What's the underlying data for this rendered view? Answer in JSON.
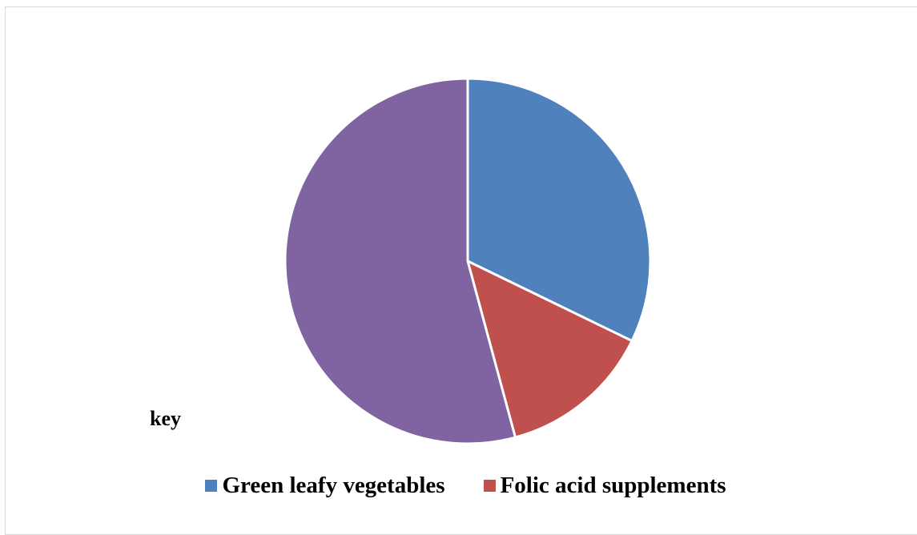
{
  "chart_data": {
    "type": "pie",
    "title": "",
    "start_angle_deg": 0,
    "direction": "clockwise",
    "slices": [
      {
        "label": "Green leafy vegetables",
        "value": 32.2,
        "color": "#4f81bd"
      },
      {
        "label": "Folic acid supplements",
        "value": 13.6,
        "color": "#c0504d"
      },
      {
        "label": "",
        "value": 54.2,
        "color": "#8064a2"
      }
    ],
    "key_label": "key",
    "legend_placement": "bottom",
    "legend": [
      {
        "label": "Green leafy vegetables",
        "color": "#4f81bd"
      },
      {
        "label": "Folic acid supplements",
        "color": "#c0504d"
      }
    ]
  }
}
